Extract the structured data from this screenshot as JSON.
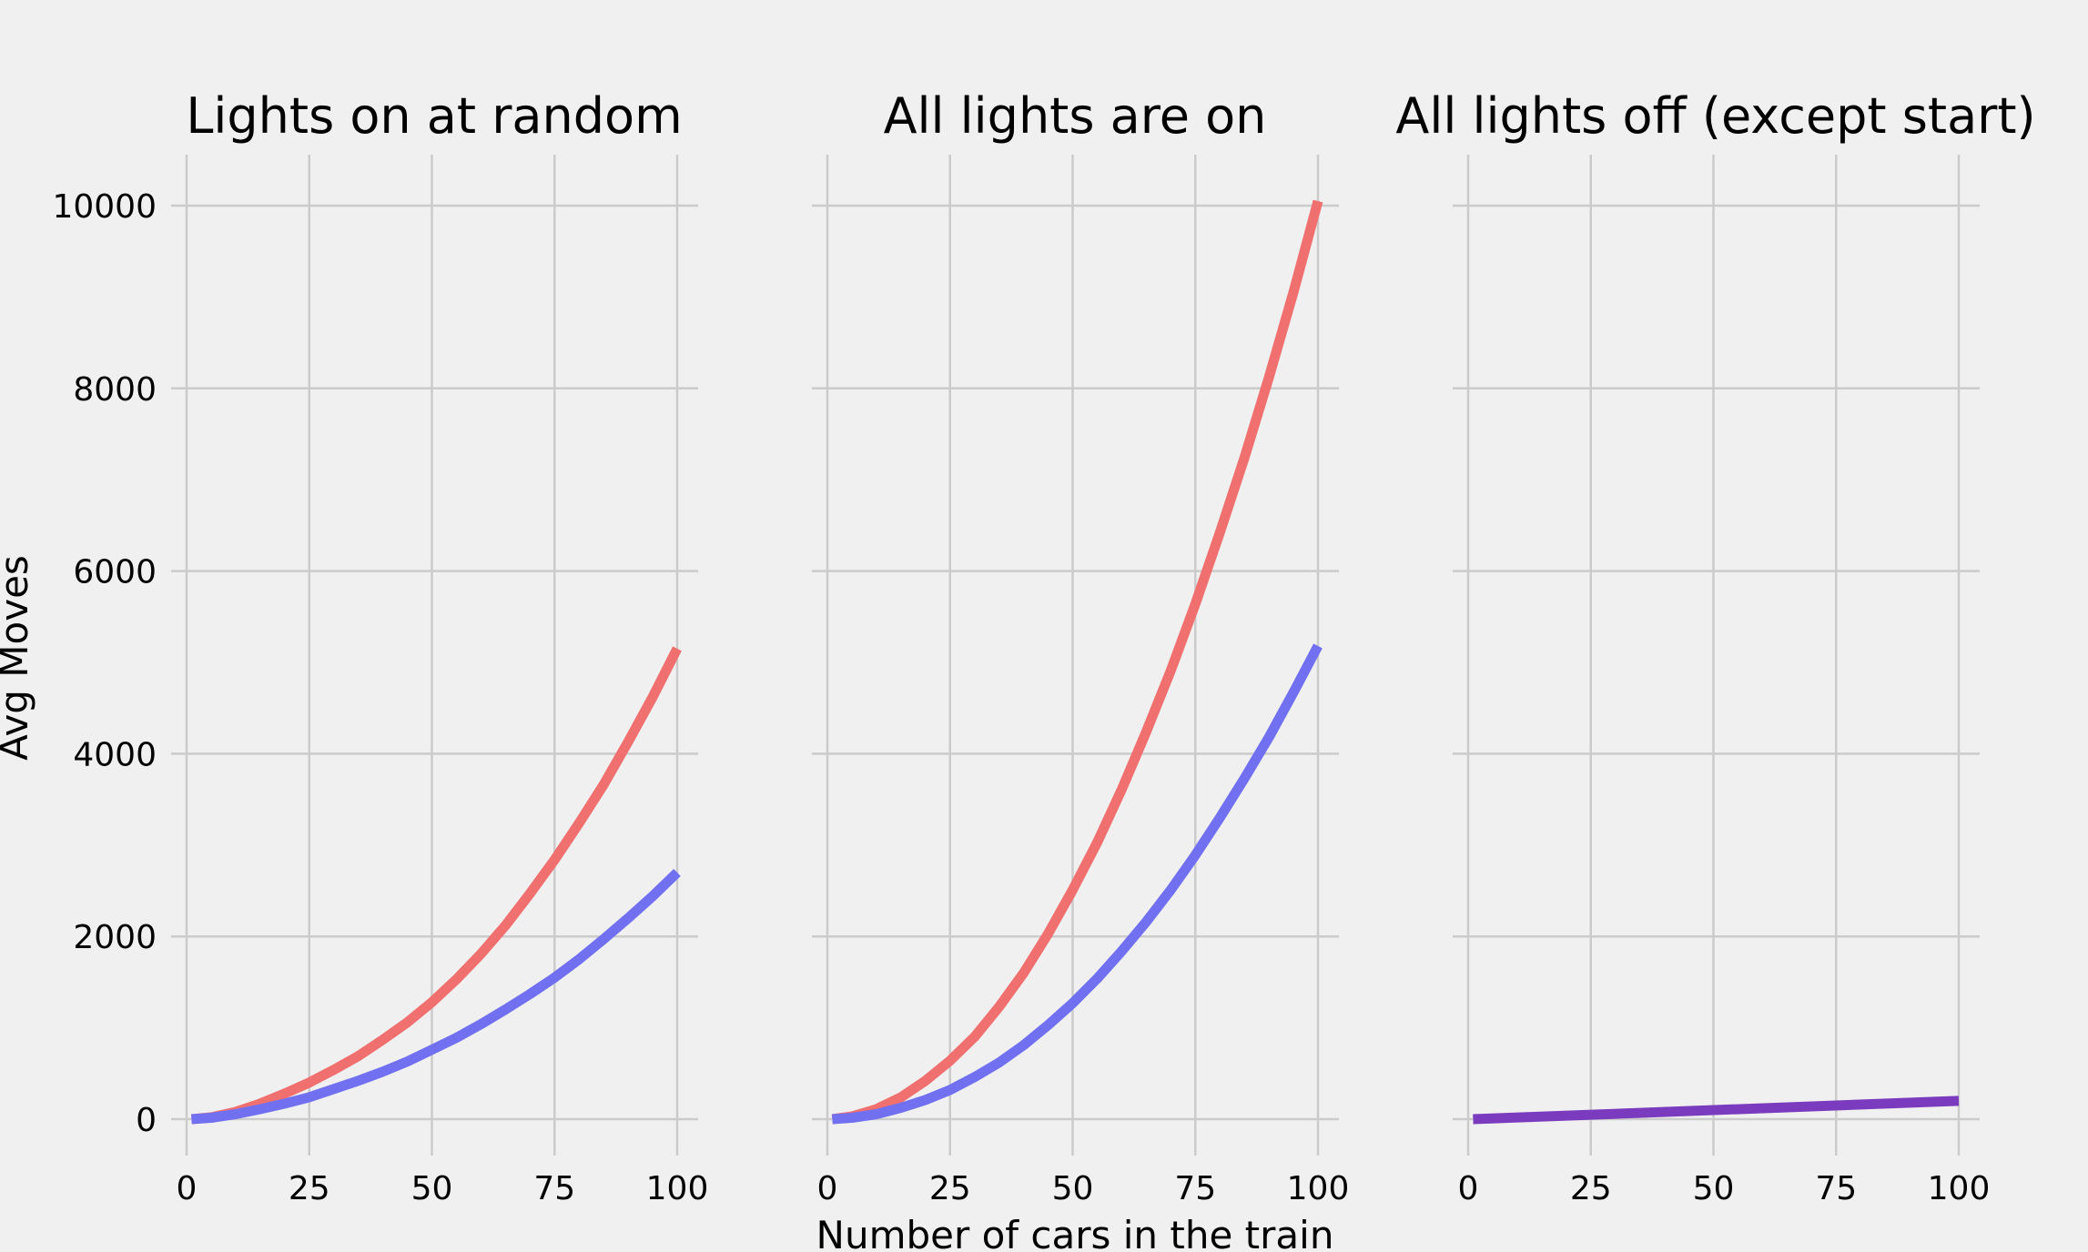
{
  "colors": {
    "red": "#f07070",
    "blue": "#7070f0",
    "purple": "#7a3bbf",
    "grid": "#cbcbcb",
    "background": "#f0f0f0"
  },
  "chart_data": {
    "type": "line",
    "ylabel": "Avg Moves",
    "xlabel": "Number of cars in the train",
    "shared_y": true,
    "ylim": [
      -400,
      10500
    ],
    "xlim": [
      -4,
      104
    ],
    "yticks": [
      0,
      2000,
      4000,
      6000,
      8000,
      10000
    ],
    "xticks": [
      0,
      25,
      50,
      75,
      100
    ],
    "grid": true,
    "panels": [
      {
        "title": "Lights on at random",
        "series": [
          {
            "color": "red",
            "x": [
              1,
              5,
              10,
              15,
              20,
              25,
              30,
              35,
              40,
              45,
              50,
              55,
              60,
              65,
              70,
              75,
              80,
              85,
              90,
              95,
              100
            ],
            "y": [
              0,
              20,
              80,
              170,
              280,
              400,
              540,
              690,
              870,
              1060,
              1280,
              1530,
              1810,
              2120,
              2470,
              2840,
              3240,
              3660,
              4130,
              4620,
              5150
            ]
          },
          {
            "color": "blue",
            "x": [
              1,
              5,
              10,
              15,
              20,
              25,
              30,
              35,
              40,
              45,
              50,
              55,
              60,
              65,
              70,
              75,
              80,
              85,
              90,
              95,
              100
            ],
            "y": [
              0,
              15,
              55,
              110,
              170,
              240,
              330,
              420,
              520,
              630,
              760,
              890,
              1040,
              1200,
              1370,
              1550,
              1750,
              1970,
              2200,
              2440,
              2700
            ]
          }
        ]
      },
      {
        "title": "All lights are on",
        "series": [
          {
            "color": "red",
            "x": [
              1,
              5,
              10,
              15,
              20,
              25,
              30,
              35,
              40,
              45,
              50,
              55,
              60,
              65,
              70,
              75,
              80,
              85,
              90,
              95,
              100
            ],
            "y": [
              0,
              30,
              110,
              240,
              420,
              640,
              900,
              1230,
              1600,
              2030,
              2510,
              3030,
              3610,
              4240,
              4910,
              5640,
              6420,
              7240,
              8120,
              9050,
              10050
            ]
          },
          {
            "color": "blue",
            "x": [
              1,
              5,
              10,
              15,
              20,
              25,
              30,
              35,
              40,
              45,
              50,
              55,
              60,
              65,
              70,
              75,
              80,
              85,
              90,
              95,
              100
            ],
            "y": [
              0,
              15,
              55,
              125,
              210,
              320,
              460,
              620,
              810,
              1030,
              1270,
              1540,
              1840,
              2160,
              2510,
              2890,
              3300,
              3730,
              4180,
              4670,
              5180
            ]
          }
        ]
      },
      {
        "title": "All lights off (except start)",
        "series": [
          {
            "color": "purple",
            "x": [
              1,
              100
            ],
            "y": [
              0,
              200
            ]
          }
        ]
      }
    ]
  }
}
